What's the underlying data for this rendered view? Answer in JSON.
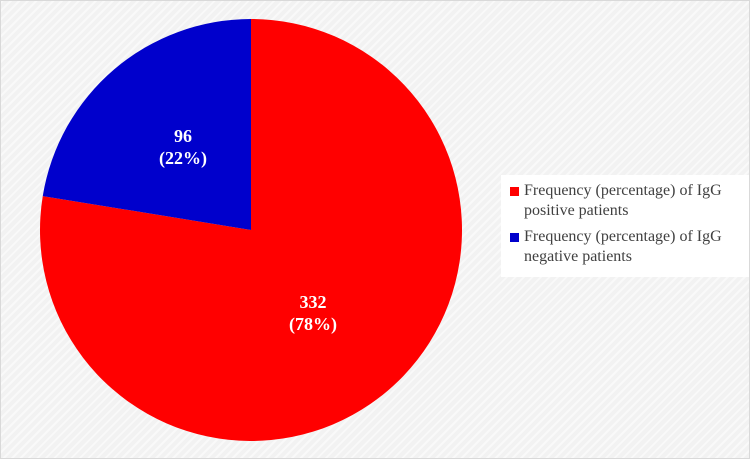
{
  "chart_data": {
    "type": "pie",
    "title": "",
    "slices": [
      {
        "label": "Frequency (percentage) of IgG positive patients",
        "value": 332,
        "percent": 78,
        "value_text": "332",
        "percent_text": "(78%)",
        "color": "#ff0000"
      },
      {
        "label": "Frequency (percentage) of IgG negative patients",
        "value": 96,
        "percent": 22,
        "value_text": "96",
        "percent_text": "(22%)",
        "color": "#0000cc"
      }
    ],
    "start_angle_deg": 0,
    "direction": "clockwise",
    "legend_position": "right"
  }
}
